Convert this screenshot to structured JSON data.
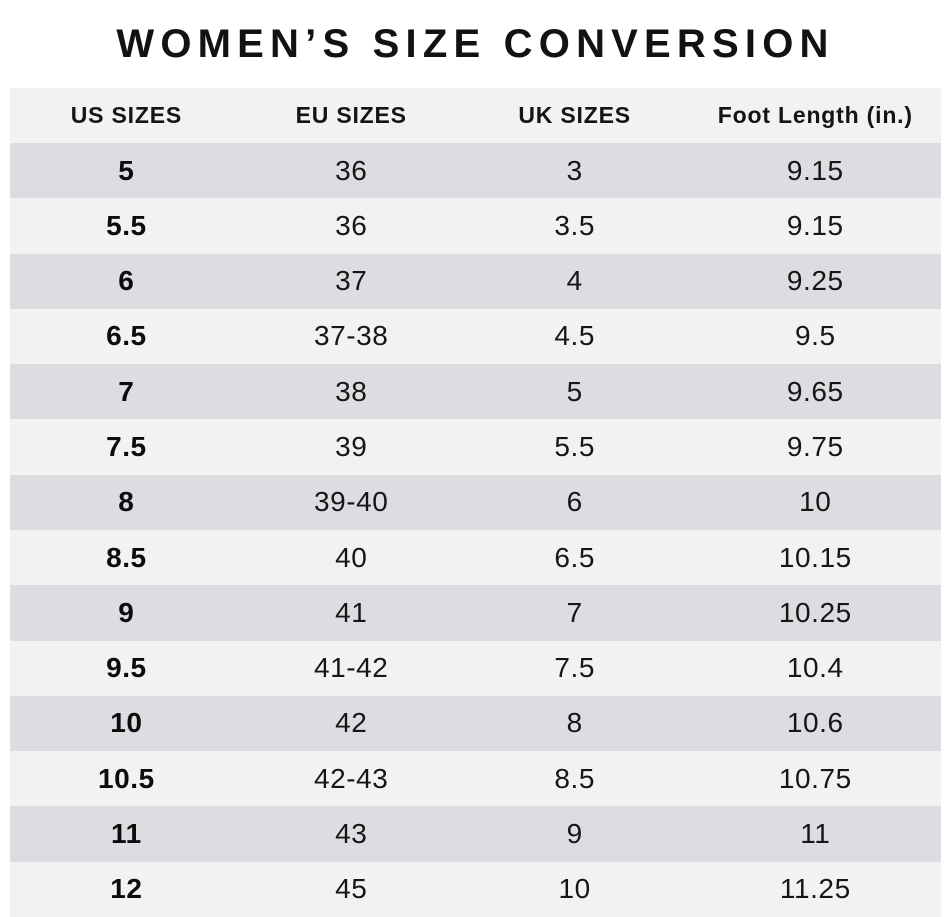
{
  "title": "WOMEN’S SIZE CONVERSION",
  "colors": {
    "background": "#ffffff",
    "header_row": "#f2f2f2",
    "row_dark": "#dcdde0",
    "row_light": "#f2f2f3",
    "text": "#161616"
  },
  "table": {
    "columns": [
      {
        "key": "us",
        "label": "US SIZES"
      },
      {
        "key": "eu",
        "label": "EU SIZES"
      },
      {
        "key": "uk",
        "label": "UK SIZES"
      },
      {
        "key": "foot",
        "label": "Foot Length (in.)"
      }
    ],
    "rows": [
      {
        "us": "5",
        "eu": "36",
        "uk": "3",
        "foot": "9.15"
      },
      {
        "us": "5.5",
        "eu": "36",
        "uk": "3.5",
        "foot": "9.15"
      },
      {
        "us": "6",
        "eu": "37",
        "uk": "4",
        "foot": "9.25"
      },
      {
        "us": "6.5",
        "eu": "37-38",
        "uk": "4.5",
        "foot": "9.5"
      },
      {
        "us": "7",
        "eu": "38",
        "uk": "5",
        "foot": "9.65"
      },
      {
        "us": "7.5",
        "eu": "39",
        "uk": "5.5",
        "foot": "9.75"
      },
      {
        "us": "8",
        "eu": "39-40",
        "uk": "6",
        "foot": "10"
      },
      {
        "us": "8.5",
        "eu": "40",
        "uk": "6.5",
        "foot": "10.15"
      },
      {
        "us": "9",
        "eu": "41",
        "uk": "7",
        "foot": "10.25"
      },
      {
        "us": "9.5",
        "eu": "41-42",
        "uk": "7.5",
        "foot": "10.4"
      },
      {
        "us": "10",
        "eu": "42",
        "uk": "8",
        "foot": "10.6"
      },
      {
        "us": "10.5",
        "eu": "42-43",
        "uk": "8.5",
        "foot": "10.75"
      },
      {
        "us": "11",
        "eu": "43",
        "uk": "9",
        "foot": "11"
      },
      {
        "us": "12",
        "eu": "45",
        "uk": "10",
        "foot": "11.25"
      }
    ]
  }
}
